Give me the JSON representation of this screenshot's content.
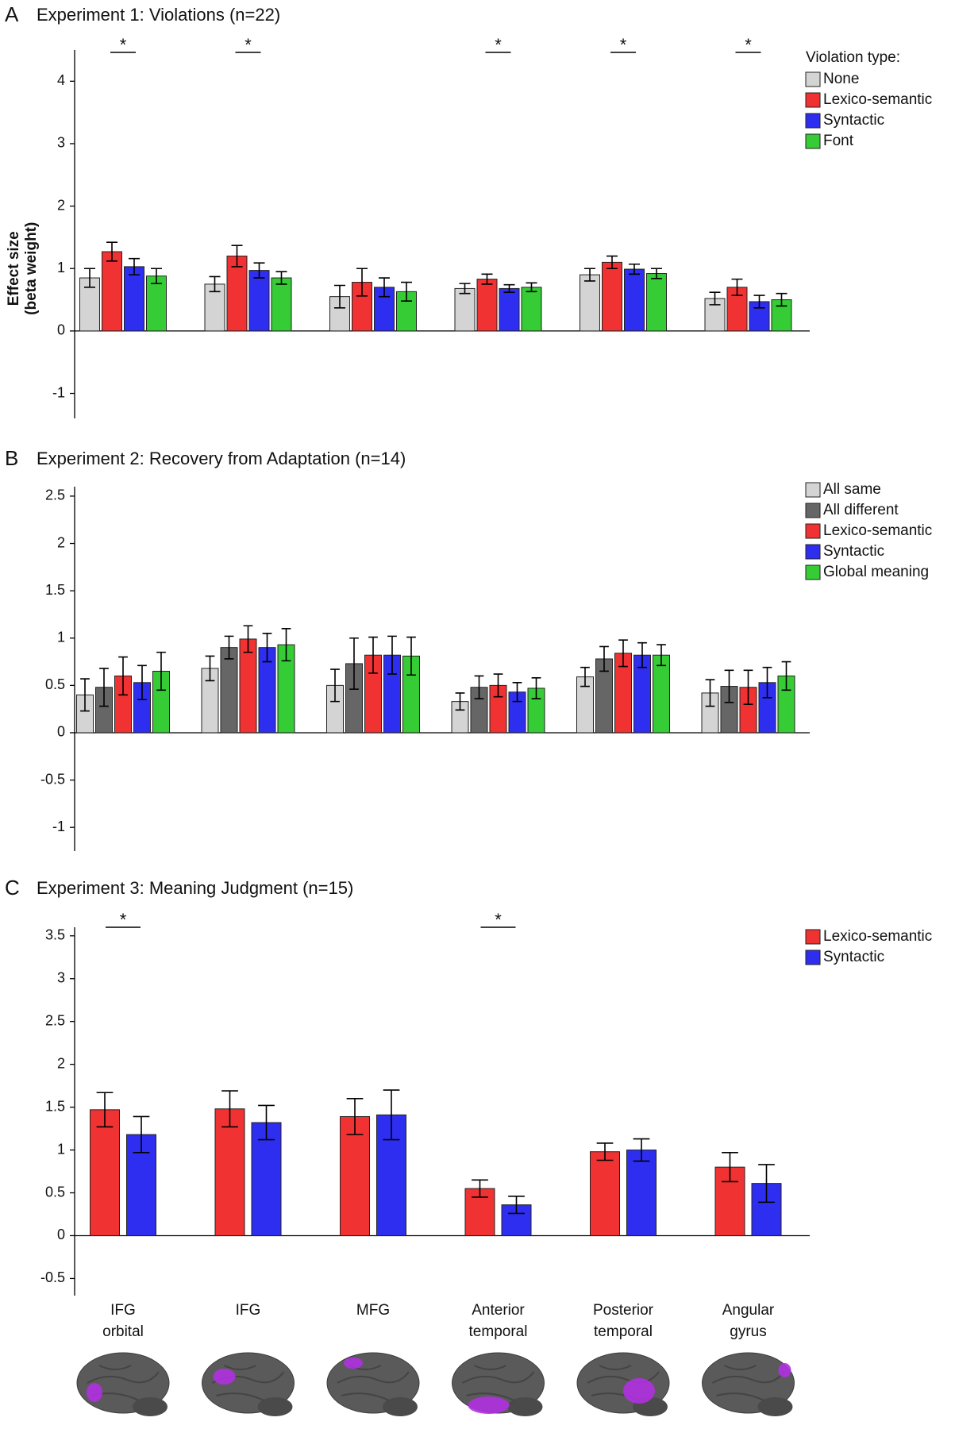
{
  "chart_data": [
    {
      "type": "bar",
      "panel": "A",
      "title": "Experiment 1: Violations (n=22)",
      "ylabel": [
        "Effect size",
        "(beta weight)"
      ],
      "ylim": [
        -1.4,
        4.5
      ],
      "yticks": [
        -1,
        0,
        1,
        2,
        3,
        4
      ],
      "legend_title": "Violation type:",
      "significant": [
        true,
        true,
        false,
        true,
        true,
        true
      ],
      "significance_label": "*",
      "series": [
        {
          "name": "None",
          "color": "#d4d4d4",
          "values": [
            0.85,
            0.75,
            0.55,
            0.68,
            0.9,
            0.52
          ],
          "errors": [
            0.15,
            0.12,
            0.18,
            0.08,
            0.1,
            0.1
          ]
        },
        {
          "name": "Lexico-semantic",
          "color": "#f03232",
          "values": [
            1.27,
            1.2,
            0.78,
            0.83,
            1.1,
            0.7
          ],
          "errors": [
            0.15,
            0.17,
            0.22,
            0.08,
            0.1,
            0.13
          ]
        },
        {
          "name": "Syntactic",
          "color": "#2e2ef0",
          "values": [
            1.03,
            0.97,
            0.7,
            0.68,
            0.99,
            0.47
          ],
          "errors": [
            0.13,
            0.12,
            0.15,
            0.06,
            0.08,
            0.1
          ]
        },
        {
          "name": "Font",
          "color": "#36cc36",
          "values": [
            0.88,
            0.85,
            0.63,
            0.7,
            0.92,
            0.5
          ],
          "errors": [
            0.12,
            0.1,
            0.15,
            0.07,
            0.08,
            0.1
          ]
        }
      ]
    },
    {
      "type": "bar",
      "panel": "B",
      "title": "Experiment 2: Recovery from Adaptation (n=14)",
      "ylim": [
        -1.25,
        2.6
      ],
      "yticks": [
        -1,
        -0.5,
        0,
        0.5,
        1,
        1.5,
        2,
        2.5
      ],
      "series": [
        {
          "name": "All same",
          "color": "#d4d4d4",
          "values": [
            0.4,
            0.68,
            0.5,
            0.33,
            0.59,
            0.42
          ],
          "errors": [
            0.17,
            0.13,
            0.17,
            0.09,
            0.1,
            0.14
          ]
        },
        {
          "name": "All different",
          "color": "#666666",
          "values": [
            0.48,
            0.9,
            0.73,
            0.48,
            0.78,
            0.49
          ],
          "errors": [
            0.2,
            0.12,
            0.27,
            0.12,
            0.13,
            0.17
          ]
        },
        {
          "name": "Lexico-semantic",
          "color": "#f03232",
          "values": [
            0.6,
            0.99,
            0.82,
            0.5,
            0.84,
            0.48
          ],
          "errors": [
            0.2,
            0.14,
            0.19,
            0.12,
            0.14,
            0.18
          ]
        },
        {
          "name": "Syntactic",
          "color": "#2e2ef0",
          "values": [
            0.53,
            0.9,
            0.82,
            0.43,
            0.82,
            0.53
          ],
          "errors": [
            0.18,
            0.15,
            0.2,
            0.1,
            0.13,
            0.16
          ]
        },
        {
          "name": "Global meaning",
          "color": "#36cc36",
          "values": [
            0.65,
            0.93,
            0.81,
            0.47,
            0.82,
            0.6
          ],
          "errors": [
            0.2,
            0.17,
            0.2,
            0.11,
            0.11,
            0.15
          ]
        }
      ]
    },
    {
      "type": "bar",
      "panel": "C",
      "title": "Experiment 3: Meaning Judgment (n=15)",
      "ylim": [
        -0.7,
        3.6
      ],
      "yticks": [
        -0.5,
        0,
        0.5,
        1,
        1.5,
        2,
        2.5,
        3,
        3.5
      ],
      "categories": [
        [
          "IFG",
          "orbital"
        ],
        [
          "IFG"
        ],
        [
          "MFG"
        ],
        [
          "Anterior",
          "temporal"
        ],
        [
          "Posterior",
          "temporal"
        ],
        [
          "Angular",
          "gyrus"
        ]
      ],
      "significant": [
        true,
        false,
        false,
        true,
        false,
        false
      ],
      "significance_label": "*",
      "series": [
        {
          "name": "Lexico-semantic",
          "color": "#f03232",
          "values": [
            1.47,
            1.48,
            1.39,
            0.55,
            0.98,
            0.8
          ],
          "errors": [
            0.2,
            0.21,
            0.21,
            0.1,
            0.1,
            0.17
          ]
        },
        {
          "name": "Syntactic",
          "color": "#2e2ef0",
          "values": [
            1.18,
            1.32,
            1.41,
            0.36,
            1.0,
            0.61
          ],
          "errors": [
            0.21,
            0.2,
            0.29,
            0.1,
            0.13,
            0.22
          ]
        }
      ]
    }
  ]
}
